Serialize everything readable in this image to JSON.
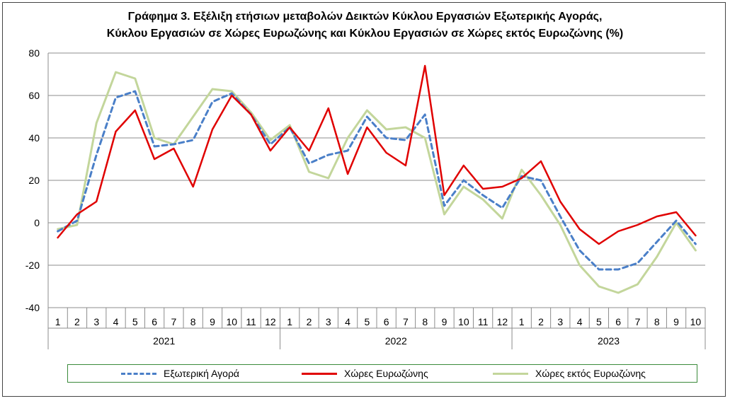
{
  "title": {
    "line1": "Γράφημα 3. Εξέλιξη  ετήσιων μεταβολών Δεικτών Κύκλου Εργασιών Εξωτερικής Αγοράς,",
    "line2": "Κύκλου Εργασιών σε Χώρες Ευρωζώνης και Κύκλου Εργασιών σε Χώρες εκτός Ευρωζώνης (%)"
  },
  "chart_data": {
    "type": "line",
    "title": "Γράφημα 3. Εξέλιξη  ετήσιων μεταβολών Δεικτών Κύκλου Εργασιών Εξωτερικής Αγοράς, Κύκλου Εργασιών σε Χώρες Ευρωζώνης και Κύκλου Εργασιών σε Χώρες εκτός Ευρωζώνης (%)",
    "ylim": [
      -40,
      80
    ],
    "yticks": [
      -40,
      -20,
      0,
      20,
      40,
      60,
      80
    ],
    "grid": true,
    "legend_position": "bottom",
    "categories": [
      "1",
      "2",
      "3",
      "4",
      "5",
      "6",
      "7",
      "8",
      "9",
      "10",
      "11",
      "12",
      "1",
      "2",
      "3",
      "4",
      "5",
      "6",
      "7",
      "8",
      "9",
      "10",
      "11",
      "12",
      "1",
      "2",
      "3",
      "4",
      "5",
      "6",
      "7",
      "8",
      "9",
      "10"
    ],
    "year_groups": [
      {
        "label": "2021",
        "count": 12
      },
      {
        "label": "2022",
        "count": 12
      },
      {
        "label": "2023",
        "count": 10
      }
    ],
    "series": [
      {
        "name": "Εξωτερική Αγορά",
        "color": "#4a7fc8",
        "style": "dashed",
        "values": [
          -4,
          1,
          32,
          59,
          62,
          36,
          37,
          39,
          57,
          61,
          51,
          37,
          45,
          28,
          32,
          34,
          50,
          40,
          39,
          51,
          8,
          20,
          13,
          7,
          22,
          20,
          3,
          -13,
          -22,
          -22,
          -19,
          -9,
          1,
          -10
        ]
      },
      {
        "name": "Χώρες Ευρωζώνης",
        "color": "#e00000",
        "style": "solid",
        "values": [
          -7,
          4,
          10,
          43,
          53,
          30,
          35,
          17,
          44,
          60,
          51,
          34,
          45,
          34,
          54,
          23,
          45,
          33,
          27,
          74,
          13,
          27,
          16,
          17,
          21,
          29,
          10,
          -3,
          -10,
          -4,
          -1,
          3,
          5,
          -6
        ]
      },
      {
        "name": "Χώρες εκτός Ευρωζώνης",
        "color": "#c3d69b",
        "style": "solid",
        "values": [
          -3,
          -1,
          47,
          71,
          68,
          40,
          37,
          50,
          63,
          62,
          52,
          39,
          46,
          24,
          21,
          40,
          53,
          44,
          45,
          40,
          4,
          17,
          11,
          2,
          25,
          13,
          -1,
          -20,
          -30,
          -33,
          -29,
          -16,
          0,
          -13
        ]
      }
    ]
  }
}
